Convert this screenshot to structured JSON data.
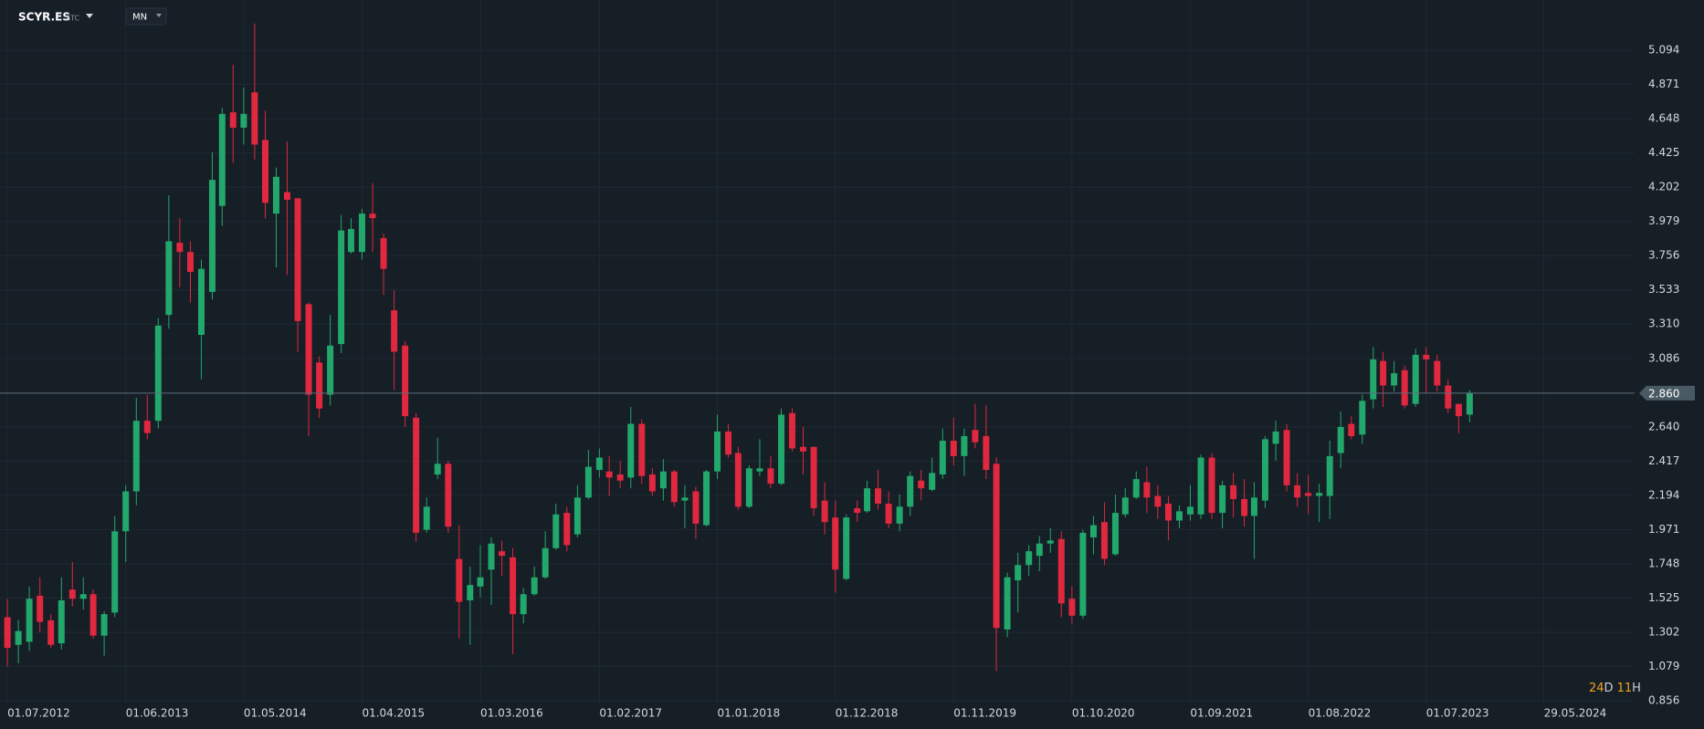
{
  "chart_data": {
    "type": "candlestick",
    "symbol": "SCYR.ES",
    "exchange": "STC",
    "interval": "MN",
    "countdown": [
      "24",
      "D",
      "11",
      "H"
    ],
    "up_color": "#22a86c",
    "down_color": "#e0283f",
    "grid": true,
    "x": [
      "2012-07-01",
      "2012-08-01",
      "2012-09-01",
      "2012-10-01",
      "2012-11-01",
      "2012-12-01",
      "2013-01-01",
      "2013-02-01",
      "2013-03-01",
      "2013-04-01",
      "2013-05-01",
      "2013-06-01",
      "2013-07-01",
      "2013-08-01",
      "2013-09-01",
      "2013-10-01",
      "2013-11-01",
      "2013-12-01",
      "2014-01-01",
      "2014-02-01",
      "2014-03-01",
      "2014-04-01",
      "2014-05-01",
      "2014-06-01",
      "2014-07-01",
      "2014-08-01",
      "2014-09-01",
      "2014-10-01",
      "2014-11-01",
      "2014-12-01",
      "2015-01-01",
      "2015-02-01",
      "2015-03-01",
      "2015-04-01",
      "2015-05-01",
      "2015-06-01",
      "2015-07-01",
      "2015-08-01",
      "2015-09-01",
      "2015-10-01",
      "2015-11-01",
      "2015-12-01",
      "2016-01-01",
      "2016-02-01",
      "2016-03-01",
      "2016-04-01",
      "2016-05-01",
      "2016-06-01",
      "2016-07-01",
      "2016-08-01",
      "2016-09-01",
      "2016-10-01",
      "2016-11-01",
      "2016-12-01",
      "2017-01-01",
      "2017-02-01",
      "2017-03-01",
      "2017-04-01",
      "2017-05-01",
      "2017-06-01",
      "2017-07-01",
      "2017-08-01",
      "2017-09-01",
      "2017-10-01",
      "2017-11-01",
      "2017-12-01",
      "2018-01-01",
      "2018-02-01",
      "2018-03-01",
      "2018-04-01",
      "2018-05-01",
      "2018-06-01",
      "2018-07-01",
      "2018-08-01",
      "2018-09-01",
      "2018-10-01",
      "2018-11-01",
      "2018-12-01",
      "2019-01-01",
      "2019-02-01",
      "2019-03-01",
      "2019-04-01",
      "2019-05-01",
      "2019-06-01",
      "2019-07-01",
      "2019-08-01",
      "2019-09-01",
      "2019-10-01",
      "2019-11-01",
      "2019-12-01",
      "2020-01-01",
      "2020-02-01",
      "2020-03-01",
      "2020-04-01",
      "2020-05-01",
      "2020-06-01",
      "2020-07-01",
      "2020-08-01",
      "2020-09-01",
      "2020-10-01",
      "2020-11-01",
      "2020-12-01",
      "2021-01-01",
      "2021-02-01",
      "2021-03-01",
      "2021-04-01",
      "2021-05-01",
      "2021-06-01",
      "2021-07-01",
      "2021-08-01",
      "2021-09-01",
      "2021-10-01",
      "2021-11-01",
      "2021-12-01",
      "2022-01-01",
      "2022-02-01",
      "2022-03-01",
      "2022-04-01",
      "2022-05-01",
      "2022-06-01",
      "2022-07-01",
      "2022-08-01",
      "2022-09-01",
      "2022-10-01",
      "2022-11-01",
      "2022-12-01",
      "2023-01-01",
      "2023-02-01",
      "2023-03-01",
      "2023-04-01",
      "2023-05-01",
      "2023-06-01",
      "2023-07-01",
      "2023-08-01",
      "2023-09-01",
      "2023-10-01",
      "2023-11-01"
    ],
    "open": [
      1.4,
      1.22,
      1.24,
      1.54,
      1.38,
      1.23,
      1.58,
      1.52,
      1.55,
      1.28,
      1.43,
      1.96,
      2.22,
      2.68,
      2.68,
      3.37,
      3.84,
      3.78,
      3.24,
      3.52,
      4.08,
      4.69,
      4.59,
      4.82,
      4.51,
      4.03,
      4.17,
      4.13,
      3.44,
      3.06,
      2.85,
      3.18,
      3.78,
      3.78,
      4.03,
      3.87,
      3.4,
      3.17,
      2.7,
      1.97,
      2.33,
      2.4,
      1.78,
      1.51,
      1.6,
      1.71,
      1.83,
      1.79,
      1.42,
      1.55,
      1.66,
      1.85,
      2.08,
      1.94,
      2.18,
      2.36,
      2.35,
      2.33,
      2.31,
      2.66,
      2.33,
      2.24,
      2.35,
      2.16,
      2.22,
      2.0,
      2.35,
      2.61,
      2.47,
      2.12,
      2.35,
      2.37,
      2.27,
      2.73,
      2.51,
      2.51,
      2.16,
      2.05,
      1.65,
      2.11,
      2.09,
      2.24,
      2.14,
      2.01,
      2.12,
      2.29,
      2.23,
      2.33,
      2.55,
      2.45,
      2.62,
      2.58,
      2.4,
      1.32,
      1.64,
      1.74,
      1.8,
      1.88,
      1.91,
      1.52,
      1.41,
      1.92,
      2.02,
      1.81,
      2.07,
      2.18,
      2.28,
      2.19,
      2.14,
      2.03,
      2.07,
      2.07,
      2.44,
      2.08,
      2.26,
      2.17,
      2.06,
      2.16,
      2.53,
      2.62,
      2.26,
      2.21,
      2.19,
      2.19,
      2.47,
      2.66,
      2.59,
      2.82,
      3.07,
      2.91,
      3.01,
      2.79,
      3.11,
      3.07,
      2.91,
      2.79,
      2.72
    ],
    "high": [
      1.52,
      1.38,
      1.6,
      1.66,
      1.42,
      1.66,
      1.76,
      1.66,
      1.58,
      1.44,
      2.06,
      2.26,
      2.83,
      2.85,
      3.35,
      4.15,
      4.0,
      3.85,
      3.73,
      4.43,
      4.72,
      5.0,
      4.85,
      5.27,
      4.7,
      4.33,
      4.5,
      4.13,
      3.45,
      3.1,
      3.37,
      4.02,
      4.0,
      4.06,
      4.23,
      3.9,
      3.53,
      3.2,
      2.73,
      2.18,
      2.57,
      2.42,
      2.0,
      1.73,
      1.87,
      1.92,
      1.9,
      1.85,
      1.59,
      1.73,
      1.96,
      2.14,
      2.12,
      2.26,
      2.49,
      2.5,
      2.45,
      2.42,
      2.77,
      2.69,
      2.37,
      2.43,
      2.36,
      2.26,
      2.25,
      2.36,
      2.72,
      2.66,
      2.51,
      2.39,
      2.56,
      2.45,
      2.76,
      2.76,
      2.64,
      2.51,
      2.28,
      2.16,
      2.07,
      2.16,
      2.29,
      2.36,
      2.22,
      2.2,
      2.35,
      2.36,
      2.44,
      2.63,
      2.7,
      2.63,
      2.79,
      2.78,
      2.44,
      1.69,
      1.82,
      1.87,
      1.93,
      1.98,
      1.96,
      1.6,
      1.97,
      2.06,
      2.15,
      2.2,
      2.24,
      2.35,
      2.38,
      2.26,
      2.19,
      2.13,
      2.26,
      2.46,
      2.47,
      2.29,
      2.34,
      2.3,
      2.28,
      2.58,
      2.68,
      2.66,
      2.34,
      2.33,
      2.27,
      2.55,
      2.74,
      2.71,
      2.85,
      3.16,
      3.13,
      3.07,
      3.04,
      3.15,
      3.16,
      3.11,
      2.95,
      2.79,
      2.88
    ],
    "low": [
      1.08,
      1.1,
      1.18,
      1.3,
      1.2,
      1.19,
      1.47,
      1.45,
      1.26,
      1.15,
      1.4,
      1.76,
      2.13,
      2.56,
      2.63,
      3.28,
      3.55,
      3.45,
      2.95,
      3.47,
      3.95,
      4.36,
      4.48,
      4.38,
      4.0,
      3.68,
      3.63,
      3.13,
      2.58,
      2.7,
      2.78,
      3.12,
      3.77,
      3.73,
      3.78,
      3.5,
      2.88,
      2.64,
      1.89,
      1.95,
      2.3,
      1.95,
      1.26,
      1.22,
      1.53,
      1.48,
      1.67,
      1.16,
      1.36,
      1.54,
      1.65,
      1.84,
      1.83,
      1.92,
      2.17,
      2.31,
      2.19,
      2.24,
      2.24,
      2.27,
      2.19,
      2.16,
      2.12,
      1.98,
      1.91,
      1.99,
      2.3,
      2.44,
      2.1,
      2.11,
      2.32,
      2.24,
      2.26,
      2.48,
      2.33,
      2.06,
      1.94,
      1.56,
      1.64,
      2.02,
      2.08,
      2.1,
      1.98,
      1.96,
      2.06,
      2.16,
      2.22,
      2.3,
      2.39,
      2.32,
      2.5,
      2.3,
      1.05,
      1.27,
      1.43,
      1.67,
      1.7,
      1.82,
      1.4,
      1.36,
      1.39,
      1.81,
      1.74,
      1.8,
      2.05,
      2.17,
      2.08,
      2.04,
      1.9,
      1.98,
      2.03,
      2.04,
      2.04,
      1.98,
      2.05,
      1.99,
      1.78,
      2.11,
      2.42,
      2.22,
      2.12,
      2.07,
      2.02,
      2.04,
      2.37,
      2.56,
      2.53,
      2.76,
      2.77,
      2.87,
      2.76,
      2.77,
      2.86,
      2.87,
      2.73,
      2.6,
      2.67
    ],
    "close": [
      1.2,
      1.31,
      1.52,
      1.37,
      1.22,
      1.51,
      1.52,
      1.55,
      1.28,
      1.42,
      1.96,
      2.22,
      2.68,
      2.6,
      3.3,
      3.85,
      3.78,
      3.65,
      3.67,
      4.25,
      4.68,
      4.59,
      4.68,
      4.48,
      4.1,
      4.27,
      4.12,
      3.33,
      2.85,
      2.76,
      3.17,
      3.92,
      3.93,
      4.03,
      4.0,
      3.67,
      3.13,
      2.71,
      1.95,
      2.12,
      2.4,
      1.99,
      1.5,
      1.61,
      1.66,
      1.88,
      1.8,
      1.42,
      1.55,
      1.66,
      1.85,
      2.07,
      1.87,
      2.18,
      2.38,
      2.44,
      2.31,
      2.29,
      2.66,
      2.32,
      2.22,
      2.35,
      2.15,
      2.18,
      2.01,
      2.35,
      2.61,
      2.46,
      2.12,
      2.37,
      2.37,
      2.27,
      2.72,
      2.5,
      2.48,
      2.11,
      2.02,
      1.71,
      2.05,
      2.08,
      2.24,
      2.14,
      2.01,
      2.12,
      2.32,
      2.24,
      2.34,
      2.55,
      2.45,
      2.58,
      2.54,
      2.36,
      1.33,
      1.66,
      1.74,
      1.83,
      1.88,
      1.9,
      1.49,
      1.41,
      1.95,
      2.0,
      1.78,
      2.08,
      2.18,
      2.3,
      2.18,
      2.12,
      2.03,
      2.09,
      2.12,
      2.44,
      2.08,
      2.26,
      2.17,
      2.06,
      2.18,
      2.56,
      2.61,
      2.26,
      2.18,
      2.19,
      2.21,
      2.45,
      2.64,
      2.58,
      2.81,
      3.08,
      2.91,
      2.99,
      2.78,
      3.11,
      3.08,
      2.91,
      2.76,
      2.71,
      2.86
    ],
    "last_price": {
      "value": 2.86,
      "label": "2.860"
    },
    "ylim": [
      0.838,
      5.422
    ],
    "yticks": [
      0.856,
      1.079,
      1.302,
      1.525,
      1.748,
      1.971,
      2.194,
      2.417,
      {
        "value": 2.64,
        "label": "2.640"
      },
      3.086,
      {
        "value": 3.31,
        "label": "3.310"
      },
      3.533,
      3.756,
      3.979,
      4.202,
      4.425,
      4.648,
      4.871,
      5.094
    ],
    "xlim": [
      "2012-06-10",
      "2025-02-10"
    ],
    "xticks": [
      {
        "value": "2012-07-01",
        "label": "01.07.2012"
      },
      {
        "value": "2013-06-01",
        "label": "01.06.2013"
      },
      {
        "value": "2014-05-01",
        "label": "01.05.2014"
      },
      {
        "value": "2015-04-01",
        "label": "01.04.2015"
      },
      {
        "value": "2016-03-01",
        "label": "01.03.2016"
      },
      {
        "value": "2017-02-01",
        "label": "01.02.2017"
      },
      {
        "value": "2018-01-01",
        "label": "01.01.2018"
      },
      {
        "value": "2018-12-01",
        "label": "01.12.2018"
      },
      {
        "value": "2019-11-01",
        "label": "01.11.2019"
      },
      {
        "value": "2020-10-01",
        "label": "01.10.2020"
      },
      {
        "value": "2021-09-01",
        "label": "01.09.2021"
      },
      {
        "value": "2022-08-01",
        "label": "01.08.2022"
      },
      {
        "value": "2023-07-01",
        "label": "01.07.2023"
      },
      {
        "value": "2024-05-29",
        "label": "29.05.2024"
      }
    ]
  }
}
